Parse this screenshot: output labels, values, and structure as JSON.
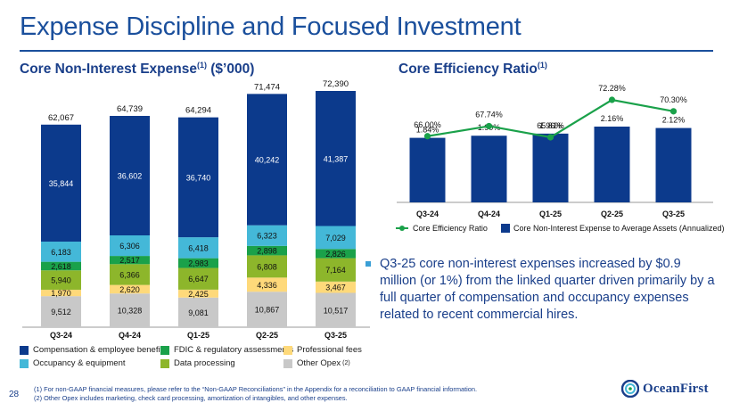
{
  "page": {
    "title": "Expense Discipline and Focused Investment",
    "page_number": "28",
    "logo_text": "OceanFirst",
    "bullet": "Q3-25 core non-interest expenses increased by $0.9 million (or 1%) from the linked quarter driven primarily by a full quarter of compensation and occupancy expenses related to recent commercial hires.",
    "footnotes": [
      "(1) For non-GAAP financial measures, please refer to the “Non-GAAP Reconciliations” in the Appendix for a reconciliation to GAAP financial information.",
      "(2) Other Opex includes marketing, check card processing, amortization of intangibles, and other expenses."
    ]
  },
  "left_chart": {
    "title_main": "Core Non-Interest Expense",
    "title_sup": "(1)",
    "title_suffix": " ($’000)"
  },
  "right_chart": {
    "title_main": "Core Efficiency Ratio",
    "title_sup": "(1)"
  },
  "legend_left": [
    {
      "label": "Compensation & employee benefits",
      "color": "#0c3a8c"
    },
    {
      "label": "FDIC & regulatory assessments",
      "color": "#1aa14a"
    },
    {
      "label": "Professional fees",
      "color": "#fed97a"
    },
    {
      "label": "Occupancy & equipment",
      "color": "#44b8d8"
    },
    {
      "label": "Data processing",
      "color": "#8db62b"
    },
    {
      "label": "Other Opex",
      "color": "#c8c8c8",
      "sup": "(2)"
    }
  ],
  "legend_right": [
    {
      "label": "Core Efficiency Ratio",
      "color": "#1aa14a"
    },
    {
      "label": "Core Non-Interest Expense to Average Assets (Annualized)",
      "color": "#0c3a8c"
    }
  ],
  "chart_data": [
    {
      "type": "bar",
      "stacked": true,
      "title": "Core Non-Interest Expense(1) ($’000)",
      "categories": [
        "Q3-24",
        "Q4-24",
        "Q1-25",
        "Q2-25",
        "Q3-25"
      ],
      "series": [
        {
          "name": "Other Opex",
          "color": "#c8c8c8",
          "values": [
            9512,
            10328,
            9081,
            10867,
            10517
          ],
          "labels": [
            "9,512",
            "10,328",
            "9,081",
            "10,867",
            "10,517"
          ]
        },
        {
          "name": "Professional fees",
          "color": "#fed97a",
          "values": [
            1970,
            2620,
            2425,
            4336,
            3467
          ],
          "labels": [
            "1,970",
            "2,620",
            "2,425",
            "4,336",
            "3,467"
          ]
        },
        {
          "name": "Data processing",
          "color": "#8db62b",
          "values": [
            5940,
            6366,
            6647,
            6808,
            7164
          ],
          "labels": [
            "5,940",
            "6,366",
            "6,647",
            "6,808",
            "7,164"
          ]
        },
        {
          "name": "FDIC & regulatory assessments",
          "color": "#1aa14a",
          "values": [
            2618,
            2517,
            2983,
            2898,
            2826
          ],
          "labels": [
            "2,618",
            "2,517",
            "2,983",
            "2,898",
            "2,826"
          ]
        },
        {
          "name": "Occupancy & equipment",
          "color": "#44b8d8",
          "values": [
            6183,
            6306,
            6418,
            6323,
            7029
          ],
          "labels": [
            "6,183",
            "6,306",
            "6,418",
            "6,323",
            "7,029"
          ]
        },
        {
          "name": "Compensation & employee benefits",
          "color": "#0c3a8c",
          "values": [
            35844,
            36602,
            36740,
            40242,
            41387
          ],
          "labels": [
            "35,844",
            "36,602",
            "36,740",
            "40,242",
            "41,387"
          ]
        }
      ],
      "totals": [
        62067,
        64739,
        64294,
        71474,
        72390
      ],
      "total_labels": [
        "62,067",
        "64,739",
        "64,294",
        "71,474",
        "72,390"
      ],
      "ylim": [
        0,
        72390
      ],
      "grid": false,
      "legend": "bottom"
    },
    {
      "type": "bar+line",
      "title": "Core Efficiency Ratio(1)",
      "categories": [
        "Q3-24",
        "Q4-24",
        "Q1-25",
        "Q2-25",
        "Q3-25"
      ],
      "series": [
        {
          "name": "Core Non-Interest Expense to Average Assets (Annualized)",
          "type": "bar",
          "color": "#0c3a8c",
          "values": [
            1.84,
            1.9,
            1.96,
            2.16,
            2.12
          ],
          "labels": [
            "1.84%",
            "1.90%",
            "1.96%",
            "2.16%",
            "2.12%"
          ]
        },
        {
          "name": "Core Efficiency Ratio",
          "type": "line",
          "color": "#1aa14a",
          "values": [
            66.0,
            67.74,
            65.81,
            72.28,
            70.3
          ],
          "labels": [
            "66.00%",
            "67.74%",
            "65.81%",
            "72.28%",
            "70.30%"
          ]
        }
      ],
      "bar_ylim": [
        0,
        2.16
      ],
      "line_ylim": [
        65.81,
        72.28
      ],
      "grid": false,
      "legend": "bottom"
    }
  ]
}
